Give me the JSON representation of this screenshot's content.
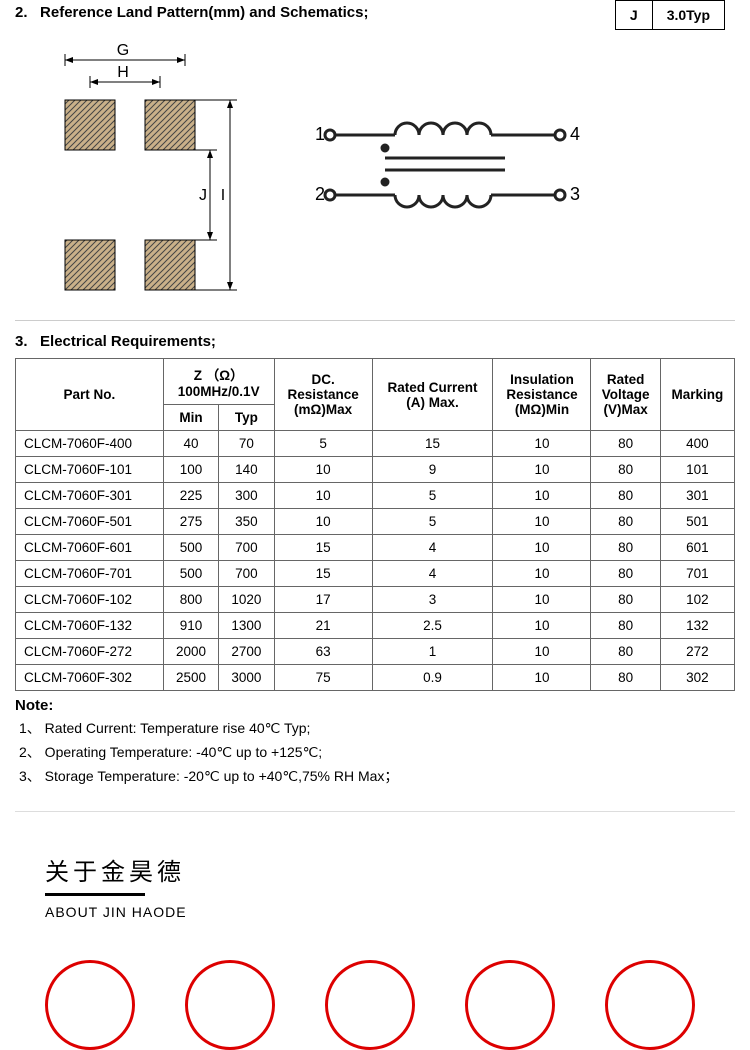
{
  "section2": {
    "number": "2.",
    "title": "Reference Land Pattern(mm) and Schematics;"
  },
  "dim_table": {
    "label": "J",
    "value": "3.0Typ"
  },
  "land_pattern": {
    "labels": {
      "G": "G",
      "H": "H",
      "J": "J",
      "I": "I"
    },
    "colors": {
      "pad_fill": "#b89a6a",
      "pad_hatch": "#333",
      "line": "#000"
    }
  },
  "schematic": {
    "pins": {
      "p1": "1",
      "p2": "2",
      "p3": "3",
      "p4": "4"
    },
    "colors": {
      "stroke": "#222"
    }
  },
  "section3": {
    "number": "3.",
    "title": "Electrical Requirements;"
  },
  "table": {
    "headers": {
      "part_no": "Part No.",
      "z": "Z （Ω）\n100MHz/0.1V",
      "z_min": "Min",
      "z_typ": "Typ",
      "dc": "DC.\nResistance\n(mΩ)Max",
      "rated_current": "Rated Current\n(A) Max.",
      "insulation": "Insulation\nResistance\n(MΩ)Min",
      "rated_voltage": "Rated\nVoltage\n(V)Max",
      "marking": "Marking"
    },
    "rows": [
      {
        "pn": "CLCM-7060F-400",
        "min": "40",
        "typ": "70",
        "dc": "5",
        "cur": "15",
        "ins": "10",
        "rv": "80",
        "mk": "400"
      },
      {
        "pn": "CLCM-7060F-101",
        "min": "100",
        "typ": "140",
        "dc": "10",
        "cur": "9",
        "ins": "10",
        "rv": "80",
        "mk": "101"
      },
      {
        "pn": "CLCM-7060F-301",
        "min": "225",
        "typ": "300",
        "dc": "10",
        "cur": "5",
        "ins": "10",
        "rv": "80",
        "mk": "301"
      },
      {
        "pn": "CLCM-7060F-501",
        "min": "275",
        "typ": "350",
        "dc": "10",
        "cur": "5",
        "ins": "10",
        "rv": "80",
        "mk": "501"
      },
      {
        "pn": "CLCM-7060F-601",
        "min": "500",
        "typ": "700",
        "dc": "15",
        "cur": "4",
        "ins": "10",
        "rv": "80",
        "mk": "601"
      },
      {
        "pn": "CLCM-7060F-701",
        "min": "500",
        "typ": "700",
        "dc": "15",
        "cur": "4",
        "ins": "10",
        "rv": "80",
        "mk": "701"
      },
      {
        "pn": "CLCM-7060F-102",
        "min": "800",
        "typ": "1020",
        "dc": "17",
        "cur": "3",
        "ins": "10",
        "rv": "80",
        "mk": "102"
      },
      {
        "pn": "CLCM-7060F-132",
        "min": "910",
        "typ": "1300",
        "dc": "21",
        "cur": "2.5",
        "ins": "10",
        "rv": "80",
        "mk": "132"
      },
      {
        "pn": "CLCM-7060F-272",
        "min": "2000",
        "typ": "2700",
        "dc": "63",
        "cur": "1",
        "ins": "10",
        "rv": "80",
        "mk": "272"
      },
      {
        "pn": "CLCM-7060F-302",
        "min": "2500",
        "typ": "3000",
        "dc": "75",
        "cur": "0.9",
        "ins": "10",
        "rv": "80",
        "mk": "302"
      }
    ]
  },
  "notes": {
    "title": "Note:",
    "items": [
      "1、 Rated Current: Temperature rise 40℃  Typ;",
      "2、 Operating Temperature: -40℃  up to +125℃;",
      "3、 Storage Temperature: -20℃  up to +40℃,75% RH Max；"
    ]
  },
  "about": {
    "cn": "关于金昊德",
    "en": "ABOUT JIN HAODE"
  },
  "circle_count": 5,
  "circle_color": "#d00"
}
